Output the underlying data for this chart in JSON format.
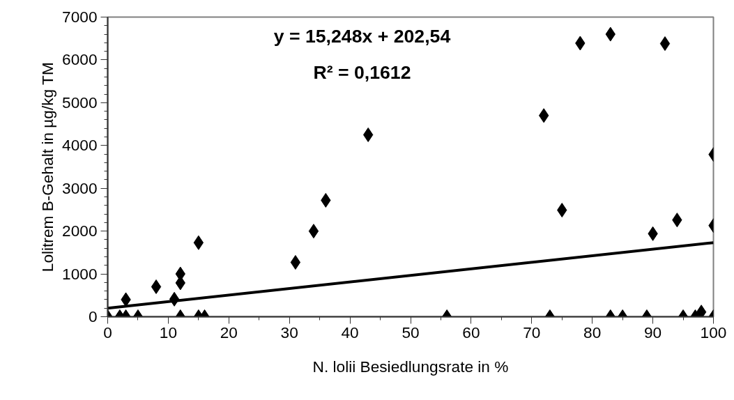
{
  "chart_data": {
    "type": "scatter",
    "xlabel": "N. lolii Besiedlungsrate in %",
    "ylabel": "Lolitrem B-Gehalt in µg/kg TM",
    "annotations": [
      "y = 15,248x + 202,54",
      "R² = 0,1612"
    ],
    "marker": "diamond",
    "grid": false,
    "xlim": [
      0,
      100
    ],
    "ylim": [
      0,
      7000
    ],
    "xticks": [
      0,
      {
        "value": 5,
        "label": null
      },
      10,
      {
        "value": 15,
        "label": null
      },
      20,
      {
        "value": 25,
        "label": null
      },
      30,
      {
        "value": 35,
        "label": null
      },
      40,
      {
        "value": 45,
        "label": null
      },
      50,
      {
        "value": 55,
        "label": null
      },
      60,
      {
        "value": 65,
        "label": null
      },
      70,
      {
        "value": 75,
        "label": null
      },
      80,
      {
        "value": 85,
        "label": null
      },
      90,
      {
        "value": 95,
        "label": null
      },
      100
    ],
    "yticks": [
      0,
      {
        "value": 200,
        "label": null
      },
      {
        "value": 400,
        "label": null
      },
      {
        "value": 600,
        "label": null
      },
      {
        "value": 800,
        "label": null
      },
      1000,
      {
        "value": 1200,
        "label": null
      },
      {
        "value": 1400,
        "label": null
      },
      {
        "value": 1600,
        "label": null
      },
      {
        "value": 1800,
        "label": null
      },
      2000,
      {
        "value": 2200,
        "label": null
      },
      {
        "value": 2400,
        "label": null
      },
      {
        "value": 2600,
        "label": null
      },
      {
        "value": 2800,
        "label": null
      },
      3000,
      {
        "value": 3200,
        "label": null
      },
      {
        "value": 3400,
        "label": null
      },
      {
        "value": 3600,
        "label": null
      },
      {
        "value": 3800,
        "label": null
      },
      4000,
      {
        "value": 4200,
        "label": null
      },
      {
        "value": 4400,
        "label": null
      },
      {
        "value": 4600,
        "label": null
      },
      {
        "value": 4800,
        "label": null
      },
      5000,
      {
        "value": 5200,
        "label": null
      },
      {
        "value": 5400,
        "label": null
      },
      {
        "value": 5600,
        "label": null
      },
      {
        "value": 5800,
        "label": null
      },
      6000,
      {
        "value": 6200,
        "label": null
      },
      {
        "value": 6400,
        "label": null
      },
      {
        "value": 6600,
        "label": null
      },
      {
        "value": 6800,
        "label": null
      },
      7000
    ],
    "series": [
      {
        "color": "#000000",
        "x": [
          0,
          2,
          3,
          3,
          5,
          8,
          11,
          12,
          12,
          12,
          15,
          15,
          16,
          31,
          34,
          36,
          43,
          56,
          72,
          73,
          75,
          78,
          83,
          83,
          85,
          89,
          90,
          92,
          94,
          95,
          97,
          98,
          100,
          100,
          100
        ],
        "values": [
          0,
          0,
          0,
          400,
          0,
          700,
          410,
          0,
          790,
          1000,
          0,
          1730,
          0,
          1270,
          2000,
          2720,
          4250,
          0,
          4700,
          0,
          2490,
          6390,
          6600,
          0,
          0,
          0,
          1940,
          6380,
          2260,
          0,
          0,
          110,
          0,
          2130,
          3790
        ]
      },
      {
        "type": "line",
        "color": "#000000",
        "line_style": "solid",
        "marker": "none",
        "x": [
          0,
          100
        ],
        "values": [
          200,
          1730
        ]
      }
    ]
  }
}
